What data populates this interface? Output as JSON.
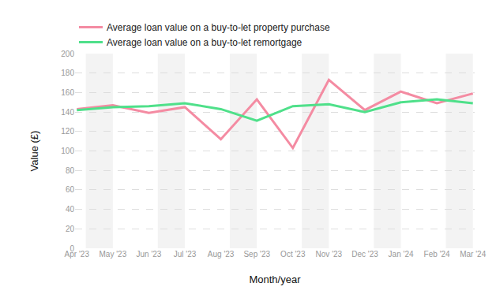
{
  "chart_data": {
    "type": "line",
    "x_label": "Month/year",
    "y_label": "Value (£)",
    "categories": [
      "Apr '23",
      "May '23",
      "Jun '23",
      "Jul '23",
      "Aug '23",
      "Sep '23",
      "Oct '23",
      "Nov '23",
      "Dec '23",
      "Jan '24",
      "Feb '24",
      "Mar '24"
    ],
    "series": [
      {
        "name": "Average loan value on a buy-to-let property purchase",
        "color": "#f48ba2",
        "values": [
          143,
          147,
          139,
          145,
          112,
          153,
          103,
          173,
          142,
          161,
          149,
          159
        ]
      },
      {
        "name": "Average loan value on a buy-to-let remortgage",
        "color": "#4fe08a",
        "values": [
          142,
          145,
          146,
          149,
          143,
          131,
          146,
          148,
          140,
          150,
          153,
          149
        ]
      }
    ],
    "ylim": [
      0,
      200
    ],
    "yticks": [
      0,
      20,
      40,
      60,
      80,
      100,
      120,
      140,
      160,
      180,
      200
    ],
    "grid": true,
    "legend": "top left"
  }
}
